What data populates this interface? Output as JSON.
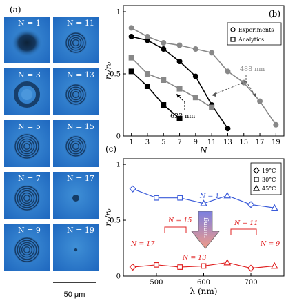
{
  "panel_a": {
    "label": "(a)",
    "tile_prefix": "N = ",
    "tiles": [
      {
        "n": "1",
        "ring": "dark"
      },
      {
        "n": "11",
        "ring": "rings"
      },
      {
        "n": "3",
        "ring": "ring"
      },
      {
        "n": "13",
        "ring": "rings"
      },
      {
        "n": "5",
        "ring": "rings"
      },
      {
        "n": "15",
        "ring": "rings"
      },
      {
        "n": "7",
        "ring": "rings"
      },
      {
        "n": "17",
        "ring": "dot"
      },
      {
        "n": "9",
        "ring": "rings"
      },
      {
        "n": "19",
        "ring": "tinydot"
      }
    ],
    "scale_bar": "50 μm"
  },
  "chart_data": [
    {
      "panel": "(b)",
      "type": "line",
      "ylabel": "r₁/r₀",
      "xlabel": "N",
      "x_ticks": [
        "1",
        "3",
        "5",
        "7",
        "9",
        "11",
        "13",
        "15",
        "17",
        "19"
      ],
      "y_ticks": [
        "0",
        "0.5",
        "1"
      ],
      "xlim": [
        0,
        20
      ],
      "ylim": [
        0,
        1.05
      ],
      "legend": [
        {
          "label": "Experiments",
          "marker": "circle"
        },
        {
          "label": "Analytics",
          "marker": "square"
        }
      ],
      "legend_position": "top-right",
      "series": [
        {
          "name": "633 nm",
          "kind": "experiments",
          "color": "#000000",
          "marker": "circle",
          "x": [
            1,
            3,
            5,
            7,
            9,
            11,
            13
          ],
          "y": [
            0.8,
            0.77,
            0.7,
            0.6,
            0.48,
            0.25,
            0.06
          ]
        },
        {
          "name": "633 nm",
          "kind": "analytics",
          "color": "#000000",
          "marker": "square",
          "x": [
            1,
            3,
            5,
            7
          ],
          "y": [
            0.52,
            0.4,
            0.25,
            0.14
          ]
        },
        {
          "name": "488 nm",
          "kind": "experiments",
          "color": "#888888",
          "marker": "circle",
          "x": [
            1,
            3,
            5,
            7,
            9,
            11,
            13,
            15,
            17,
            19
          ],
          "y": [
            0.87,
            0.8,
            0.75,
            0.73,
            0.7,
            0.67,
            0.52,
            0.43,
            0.28,
            0.09
          ]
        },
        {
          "name": "488 nm",
          "kind": "analytics",
          "color": "#888888",
          "marker": "square",
          "x": [
            1,
            3,
            5,
            7,
            9,
            11
          ],
          "y": [
            0.63,
            0.5,
            0.45,
            0.38,
            0.31,
            0.23
          ]
        }
      ],
      "annotations": [
        {
          "text": "633 nm",
          "color": "#000000"
        },
        {
          "text": "488 nm",
          "color": "#888888"
        }
      ]
    },
    {
      "panel": "(c)",
      "type": "line",
      "ylabel": "r₁/r₀",
      "xlabel": "λ (nm)",
      "x_ticks": [
        "500",
        "600",
        "700"
      ],
      "y_ticks": [
        "0",
        "0.5",
        "1"
      ],
      "xlim": [
        430,
        770
      ],
      "ylim": [
        0,
        1.05
      ],
      "legend": [
        {
          "label": "19°C",
          "marker": "diamond"
        },
        {
          "label": "30°C",
          "marker": "square"
        },
        {
          "label": "45°C",
          "marker": "triangle"
        }
      ],
      "legend_position": "top-right",
      "series": [
        {
          "name": "N = 1",
          "color": "#3a5bd9",
          "x": [
            450,
            500,
            550,
            600,
            650,
            700,
            750
          ],
          "markers": [
            "diamond",
            "square",
            "square",
            "triangle",
            "triangle",
            "diamond",
            "triangle"
          ],
          "y": [
            0.78,
            0.7,
            0.7,
            0.65,
            0.72,
            0.64,
            0.61
          ]
        },
        {
          "name": "N = 17 … N = 9",
          "color": "#e02020",
          "x": [
            450,
            500,
            550,
            600,
            650,
            700,
            750
          ],
          "markers": [
            "diamond",
            "square",
            "square",
            "square",
            "triangle",
            "diamond",
            "triangle"
          ],
          "y": [
            0.08,
            0.1,
            0.08,
            0.09,
            0.12,
            0.07,
            0.09
          ]
        }
      ],
      "annotations": [
        {
          "text": "N = 1",
          "color": "#3a5bd9"
        },
        {
          "text": "N = 15",
          "color": "#e02020"
        },
        {
          "text": "N = 17",
          "color": "#e02020"
        },
        {
          "text": "N = 13",
          "color": "#e02020"
        },
        {
          "text": "N = 11",
          "color": "#e02020"
        },
        {
          "text": "N = 9",
          "color": "#e02020"
        },
        {
          "text": "tuning",
          "color": "#ffffff"
        }
      ]
    }
  ]
}
